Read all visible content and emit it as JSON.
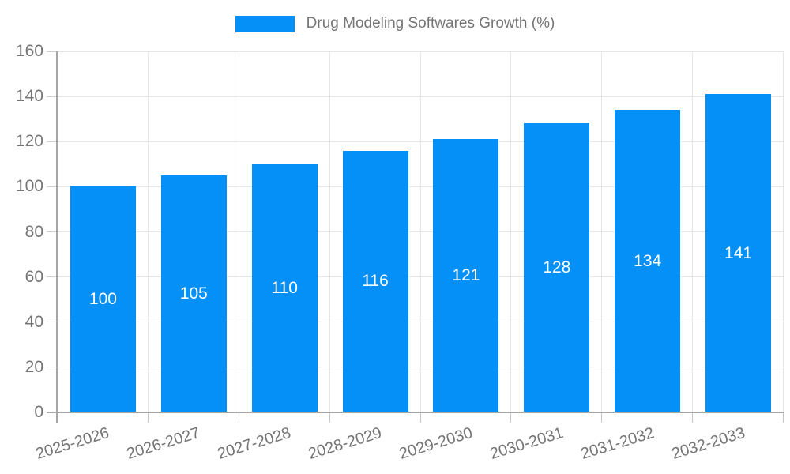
{
  "legend": {
    "label": "Drug Modeling Softwares Growth (%)"
  },
  "chart_data": {
    "type": "bar",
    "title": "Drug Modeling Softwares Growth (%)",
    "categories": [
      "2025-2026",
      "2026-2027",
      "2027-2028",
      "2028-2029",
      "2029-2030",
      "2030-2031",
      "2031-2032",
      "2032-2033"
    ],
    "values": [
      100,
      105,
      110,
      116,
      121,
      128,
      134,
      141
    ],
    "xlabel": "",
    "ylabel": "",
    "ylim": [
      0,
      160
    ],
    "yticks": [
      0,
      20,
      40,
      60,
      80,
      100,
      120,
      140,
      160
    ],
    "grid": true,
    "legend_position": "top-center",
    "bar_value_labels": "centered-inside-white"
  },
  "colors": {
    "bar": "#0590f8",
    "bar_label": "#ffffff",
    "axis_line": "#a6a6a6",
    "gridline": "#e6e6e6",
    "tick": "#c6c6c6",
    "text": "#757575",
    "background": "#ffffff"
  }
}
